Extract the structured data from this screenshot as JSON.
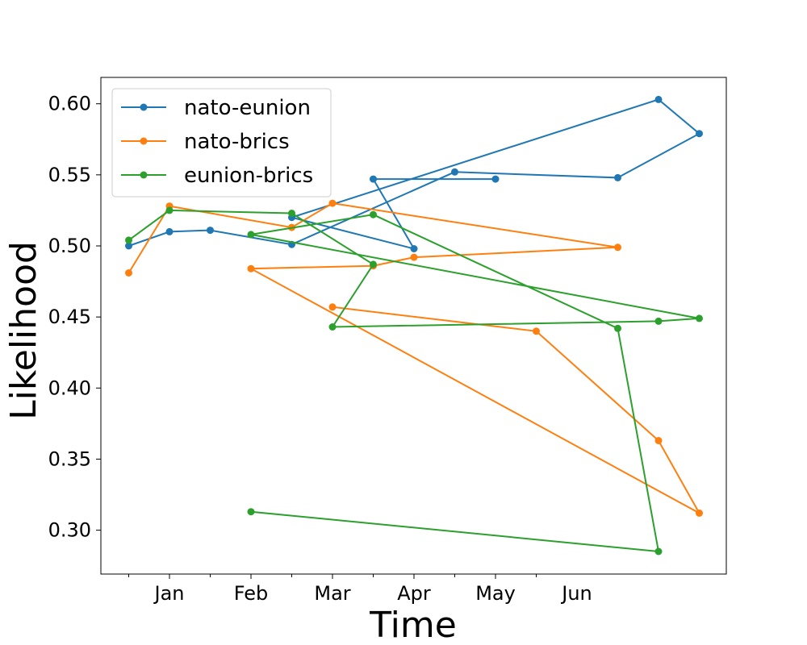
{
  "chart_data": {
    "type": "line",
    "title": "",
    "xlabel": "Time",
    "ylabel": "Likelihood",
    "x_tick_labels": [
      "Jan",
      "Feb",
      "Mar",
      "Apr",
      "May",
      "Jun"
    ],
    "ylim": [
      0.27,
      0.62
    ],
    "y_ticks": [
      0.3,
      0.35,
      0.4,
      0.45,
      0.5,
      0.55,
      0.6
    ],
    "y_tick_labels": [
      "0.30",
      "0.35",
      "0.40",
      "0.45",
      "0.50",
      "0.55",
      "0.60"
    ],
    "grid": false,
    "legend_position": "upper-left",
    "x_unit_note": "x values are month positions: 0=Jan, 1=Feb, ... 5=Jun, 0.5 steps between",
    "series": [
      {
        "name": "nato-eunion",
        "color": "#1f77b4",
        "x": [
          -0.5,
          0,
          0.5,
          1.5,
          3.5,
          5.5,
          6.5,
          6.0,
          1.5,
          3.0,
          2.5,
          4.0
        ],
        "y": [
          0.5,
          0.51,
          0.511,
          0.501,
          0.552,
          0.548,
          0.579,
          0.603,
          0.52,
          0.498,
          0.547,
          0.547
        ]
      },
      {
        "name": "nato-brics",
        "color": "#ff7f0e",
        "x": [
          -0.5,
          0,
          1.5,
          2.0,
          5.5,
          3.0,
          2.5,
          1.0,
          6.5,
          6.0,
          4.5,
          2.0
        ],
        "y": [
          0.481,
          0.528,
          0.513,
          0.53,
          0.499,
          0.492,
          0.486,
          0.484,
          0.312,
          0.363,
          0.44,
          0.457
        ]
      },
      {
        "name": "eunion-brics",
        "color": "#2ca02c",
        "x": [
          -0.5,
          0,
          1.5,
          2.5,
          2.0,
          6.0,
          6.5,
          1.0,
          2.5,
          5.5,
          6.0,
          1.0
        ],
        "y": [
          0.504,
          0.525,
          0.523,
          0.487,
          0.443,
          0.447,
          0.449,
          0.508,
          0.522,
          0.442,
          0.285,
          0.313
        ]
      }
    ]
  }
}
